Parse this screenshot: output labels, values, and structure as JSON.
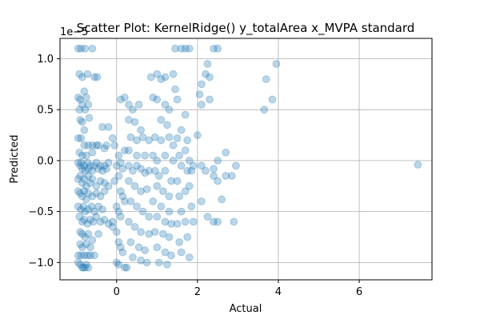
{
  "chart_data": {
    "type": "scatter",
    "title": "Scatter Plot: KernelRidge() y_totalArea x_MVPA standard",
    "xlabel": "Actual",
    "ylabel": "Predicted",
    "y_offset_label": "1e−5",
    "xlim": [
      -1.4,
      7.8
    ],
    "ylim": [
      -1.17,
      1.2
    ],
    "x_ticks": [
      0,
      2,
      4,
      6
    ],
    "y_ticks": [
      -1.0,
      -0.5,
      0.0,
      0.5,
      1.0
    ],
    "x_tick_labels": [
      "0",
      "2",
      "4",
      "6"
    ],
    "y_tick_labels": [
      "−1.0",
      "−0.5",
      "0.0",
      "0.5",
      "1.0"
    ],
    "grid": true,
    "point_color": "#1f77b4",
    "point_alpha": 0.3,
    "series": [
      {
        "points": [
          [
            -0.95,
            1.1
          ],
          [
            -0.88,
            1.1
          ],
          [
            -0.78,
            1.1
          ],
          [
            -0.6,
            1.1
          ],
          [
            -0.92,
            0.85
          ],
          [
            -0.85,
            0.82
          ],
          [
            -0.72,
            0.85
          ],
          [
            -0.55,
            0.82
          ],
          [
            -0.48,
            0.82
          ],
          [
            -0.95,
            0.62
          ],
          [
            -0.9,
            0.6
          ],
          [
            -0.85,
            0.55
          ],
          [
            -0.8,
            0.68
          ],
          [
            -0.75,
            0.62
          ],
          [
            -0.7,
            0.55
          ],
          [
            -0.92,
            0.5
          ],
          [
            -0.78,
            0.5
          ],
          [
            -0.68,
            0.42
          ],
          [
            -0.9,
            0.4
          ],
          [
            -0.85,
            0.38
          ],
          [
            -0.8,
            0.3
          ],
          [
            -0.35,
            0.33
          ],
          [
            -0.2,
            0.33
          ],
          [
            -0.95,
            0.22
          ],
          [
            -0.88,
            0.22
          ],
          [
            -0.8,
            0.15
          ],
          [
            -0.7,
            0.15
          ],
          [
            -0.6,
            0.15
          ],
          [
            -0.5,
            0.15
          ],
          [
            -0.45,
            0.15
          ],
          [
            -0.92,
            0.08
          ],
          [
            -0.85,
            0.05
          ],
          [
            -0.75,
            0.05
          ],
          [
            -0.6,
            0.08
          ],
          [
            -0.3,
            0.12
          ],
          [
            -0.25,
            0.15
          ],
          [
            -0.95,
            -0.02
          ],
          [
            -0.9,
            -0.05
          ],
          [
            -0.88,
            -0.02
          ],
          [
            -0.85,
            -0.08
          ],
          [
            -0.8,
            -0.05
          ],
          [
            -0.78,
            -0.1
          ],
          [
            -0.72,
            -0.02
          ],
          [
            -0.7,
            -0.08
          ],
          [
            -0.65,
            -0.05
          ],
          [
            -0.6,
            -0.1
          ],
          [
            -0.55,
            -0.05
          ],
          [
            -0.5,
            -0.02
          ],
          [
            -0.45,
            -0.08
          ],
          [
            -0.4,
            -0.05
          ],
          [
            -0.35,
            -0.1
          ],
          [
            -0.3,
            -0.05
          ],
          [
            -0.25,
            -0.08
          ],
          [
            -0.2,
            -0.02
          ],
          [
            -0.95,
            -0.18
          ],
          [
            -0.9,
            -0.15
          ],
          [
            -0.85,
            -0.22
          ],
          [
            -0.8,
            -0.18
          ],
          [
            -0.75,
            -0.25
          ],
          [
            -0.7,
            -0.15
          ],
          [
            -0.65,
            -0.22
          ],
          [
            -0.6,
            -0.18
          ],
          [
            -0.5,
            -0.25
          ],
          [
            -0.4,
            -0.2
          ],
          [
            -0.3,
            -0.22
          ],
          [
            -0.2,
            -0.25
          ],
          [
            -0.95,
            -0.3
          ],
          [
            -0.9,
            -0.32
          ],
          [
            -0.85,
            -0.35
          ],
          [
            -0.8,
            -0.3
          ],
          [
            -0.75,
            -0.38
          ],
          [
            -0.7,
            -0.32
          ],
          [
            -0.6,
            -0.35
          ],
          [
            -0.5,
            -0.32
          ],
          [
            -0.4,
            -0.35
          ],
          [
            -0.3,
            -0.3
          ],
          [
            -0.95,
            -0.45
          ],
          [
            -0.88,
            -0.48
          ],
          [
            -0.82,
            -0.45
          ],
          [
            -0.78,
            -0.5
          ],
          [
            -0.7,
            -0.48
          ],
          [
            -0.62,
            -0.45
          ],
          [
            -0.55,
            -0.5
          ],
          [
            -0.45,
            -0.45
          ],
          [
            -0.35,
            -0.48
          ],
          [
            -0.92,
            -0.55
          ],
          [
            -0.85,
            -0.6
          ],
          [
            -0.8,
            -0.58
          ],
          [
            -0.72,
            -0.62
          ],
          [
            -0.65,
            -0.58
          ],
          [
            -0.58,
            -0.6
          ],
          [
            -0.5,
            -0.55
          ],
          [
            -0.4,
            -0.6
          ],
          [
            -0.3,
            -0.58
          ],
          [
            -0.2,
            -0.62
          ],
          [
            -0.1,
            -0.6
          ],
          [
            -0.9,
            -0.7
          ],
          [
            -0.85,
            -0.72
          ],
          [
            -0.78,
            -0.75
          ],
          [
            -0.7,
            -0.72
          ],
          [
            -0.6,
            -0.78
          ],
          [
            -0.45,
            -0.72
          ],
          [
            -0.9,
            -0.82
          ],
          [
            -0.85,
            -0.85
          ],
          [
            -0.75,
            -0.82
          ],
          [
            -0.65,
            -0.85
          ],
          [
            -0.95,
            -0.93
          ],
          [
            -0.88,
            -0.93
          ],
          [
            -0.8,
            -0.93
          ],
          [
            -0.72,
            -0.93
          ],
          [
            -0.65,
            -0.93
          ],
          [
            -0.55,
            -0.93
          ],
          [
            -0.95,
            -1.0
          ],
          [
            -0.9,
            -1.02
          ],
          [
            -0.85,
            -1.05
          ],
          [
            -0.82,
            -1.05
          ],
          [
            -0.78,
            -1.05
          ],
          [
            -0.75,
            -1.02
          ],
          [
            -0.7,
            -1.05
          ],
          [
            -0.1,
            0.22
          ],
          [
            -0.05,
            0.15
          ],
          [
            0.05,
            0.05
          ],
          [
            0.1,
            -0.02
          ],
          [
            0.15,
            -0.08
          ],
          [
            0.2,
            0.1
          ],
          [
            0.0,
            -0.05
          ],
          [
            0.05,
            -0.15
          ],
          [
            -0.05,
            -0.2
          ],
          [
            0.1,
            -0.3
          ],
          [
            0.15,
            -0.35
          ],
          [
            0.2,
            -0.4
          ],
          [
            0.0,
            -0.45
          ],
          [
            0.05,
            -0.5
          ],
          [
            0.1,
            -0.55
          ],
          [
            -0.1,
            -0.65
          ],
          [
            0.0,
            -0.7
          ],
          [
            0.05,
            -0.8
          ],
          [
            0.1,
            -0.85
          ],
          [
            0.15,
            -0.9
          ],
          [
            0.0,
            -1.0
          ],
          [
            0.05,
            -1.02
          ],
          [
            0.2,
            -1.05
          ],
          [
            0.25,
            -1.05
          ],
          [
            0.1,
            0.6
          ],
          [
            0.2,
            0.62
          ],
          [
            0.3,
            0.55
          ],
          [
            0.4,
            0.5
          ],
          [
            0.55,
            0.55
          ],
          [
            0.3,
            0.4
          ],
          [
            0.45,
            0.38
          ],
          [
            0.6,
            0.3
          ],
          [
            0.35,
            0.23
          ],
          [
            0.5,
            0.2
          ],
          [
            0.65,
            0.23
          ],
          [
            0.8,
            0.2
          ],
          [
            0.3,
            0.1
          ],
          [
            0.5,
            0.05
          ],
          [
            0.7,
            0.05
          ],
          [
            0.3,
            -0.05
          ],
          [
            0.4,
            -0.1
          ],
          [
            0.5,
            -0.05
          ],
          [
            0.6,
            -0.08
          ],
          [
            0.7,
            -0.12
          ],
          [
            0.8,
            -0.1
          ],
          [
            0.3,
            -0.2
          ],
          [
            0.45,
            -0.25
          ],
          [
            0.6,
            -0.3
          ],
          [
            0.75,
            -0.28
          ],
          [
            0.35,
            -0.4
          ],
          [
            0.5,
            -0.45
          ],
          [
            0.65,
            -0.5
          ],
          [
            0.8,
            -0.55
          ],
          [
            0.3,
            -0.6
          ],
          [
            0.45,
            -0.65
          ],
          [
            0.6,
            -0.7
          ],
          [
            0.8,
            -0.72
          ],
          [
            0.35,
            -0.8
          ],
          [
            0.55,
            -0.85
          ],
          [
            0.7,
            -0.88
          ],
          [
            0.4,
            -0.95
          ],
          [
            0.6,
            -0.98
          ],
          [
            0.75,
            -1.0
          ],
          [
            0.85,
            0.82
          ],
          [
            0.9,
            0.62
          ],
          [
            1.0,
            0.85
          ],
          [
            1.1,
            0.8
          ],
          [
            1.2,
            0.82
          ],
          [
            1.0,
            0.6
          ],
          [
            1.2,
            0.55
          ],
          [
            1.3,
            0.5
          ],
          [
            1.1,
            0.4
          ],
          [
            1.25,
            0.35
          ],
          [
            0.95,
            0.23
          ],
          [
            1.1,
            0.2
          ],
          [
            1.3,
            0.23
          ],
          [
            1.4,
            0.15
          ],
          [
            0.9,
            0.05
          ],
          [
            1.0,
            0.0
          ],
          [
            1.2,
            0.05
          ],
          [
            1.4,
            0.0
          ],
          [
            0.95,
            -0.1
          ],
          [
            1.05,
            -0.15
          ],
          [
            1.2,
            -0.1
          ],
          [
            1.35,
            -0.2
          ],
          [
            1.0,
            -0.25
          ],
          [
            1.15,
            -0.3
          ],
          [
            1.3,
            -0.35
          ],
          [
            0.9,
            -0.4
          ],
          [
            1.1,
            -0.45
          ],
          [
            1.3,
            -0.5
          ],
          [
            1.0,
            -0.55
          ],
          [
            1.2,
            -0.6
          ],
          [
            1.35,
            -0.62
          ],
          [
            0.95,
            -0.7
          ],
          [
            1.15,
            -0.72
          ],
          [
            1.3,
            -0.75
          ],
          [
            1.0,
            -0.85
          ],
          [
            1.2,
            -0.9
          ],
          [
            1.35,
            -0.93
          ],
          [
            1.05,
            -1.0
          ],
          [
            1.25,
            -1.02
          ],
          [
            1.4,
            0.85
          ],
          [
            1.45,
            0.7
          ],
          [
            1.5,
            0.6
          ],
          [
            1.6,
            0.3
          ],
          [
            1.5,
            0.22
          ],
          [
            1.55,
            0.05
          ],
          [
            1.6,
            -0.05
          ],
          [
            1.5,
            -0.2
          ],
          [
            1.55,
            -0.35
          ],
          [
            1.6,
            -0.5
          ],
          [
            1.5,
            -0.62
          ],
          [
            1.55,
            -0.8
          ],
          [
            1.6,
            -0.9
          ],
          [
            1.45,
            1.1
          ],
          [
            1.6,
            1.1
          ],
          [
            1.7,
            1.1
          ],
          [
            1.8,
            1.1
          ],
          [
            1.7,
            0.45
          ],
          [
            1.75,
            0.2
          ],
          [
            1.7,
            0.1
          ],
          [
            1.8,
            0.0
          ],
          [
            1.75,
            -0.1
          ],
          [
            1.8,
            -0.25
          ],
          [
            1.7,
            -0.3
          ],
          [
            1.85,
            -0.45
          ],
          [
            1.9,
            -0.6
          ],
          [
            1.7,
            -0.6
          ],
          [
            1.75,
            -0.75
          ],
          [
            1.8,
            -0.95
          ],
          [
            1.85,
            -0.1
          ],
          [
            1.9,
            -0.05
          ],
          [
            2.05,
            0.65
          ],
          [
            2.1,
            0.55
          ],
          [
            2.1,
            0.75
          ],
          [
            2.2,
            0.85
          ],
          [
            2.3,
            0.82
          ],
          [
            2.3,
            0.6
          ],
          [
            2.25,
            0.95
          ],
          [
            2.4,
            1.1
          ],
          [
            2.5,
            1.1
          ],
          [
            2.0,
            0.25
          ],
          [
            2.1,
            -0.05
          ],
          [
            2.2,
            -0.1
          ],
          [
            2.4,
            -0.15
          ],
          [
            2.5,
            -0.2
          ],
          [
            2.1,
            -0.4
          ],
          [
            2.25,
            -0.55
          ],
          [
            2.4,
            -0.6
          ],
          [
            2.5,
            -0.6
          ],
          [
            2.4,
            -0.08
          ],
          [
            2.5,
            0.0
          ],
          [
            2.6,
            -0.38
          ],
          [
            2.7,
            0.08
          ],
          [
            2.7,
            -0.15
          ],
          [
            2.85,
            -0.15
          ],
          [
            2.95,
            -0.05
          ],
          [
            2.9,
            -0.6
          ],
          [
            3.65,
            0.5
          ],
          [
            3.7,
            0.8
          ],
          [
            3.85,
            0.6
          ],
          [
            3.95,
            0.95
          ],
          [
            7.45,
            -0.04
          ]
        ]
      }
    ]
  }
}
